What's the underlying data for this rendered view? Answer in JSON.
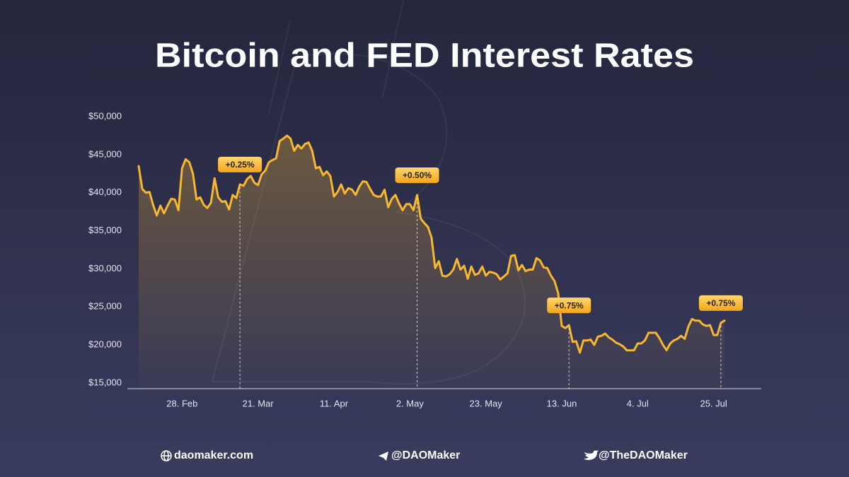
{
  "chart_data": {
    "type": "line",
    "title": "Bitcoin and FED Interest Rates",
    "color": "#f7b731",
    "ylim": [
      15000,
      50000
    ],
    "yticks": [
      {
        "value": 15000,
        "label": "$15,000"
      },
      {
        "value": 20000,
        "label": "$20,000"
      },
      {
        "value": 25000,
        "label": "$25,000"
      },
      {
        "value": 30000,
        "label": "$30,000"
      },
      {
        "value": 35000,
        "label": "$35,000"
      },
      {
        "value": 40000,
        "label": "$40,000"
      },
      {
        "value": 45000,
        "label": "$45,000"
      },
      {
        "value": 50000,
        "label": "$50,000"
      }
    ],
    "grid": false,
    "categories": [
      null,
      null,
      null,
      null,
      null,
      null,
      null,
      null,
      null,
      null,
      null,
      null,
      "28. Feb",
      null,
      null,
      null,
      null,
      null,
      null,
      null,
      null,
      null,
      null,
      null,
      null,
      null,
      null,
      null,
      null,
      null,
      null,
      null,
      null,
      "21. Mar",
      null,
      null,
      null,
      null,
      null,
      null,
      null,
      null,
      null,
      null,
      null,
      null,
      null,
      null,
      null,
      null,
      null,
      null,
      null,
      null,
      "11. Apr",
      null,
      null,
      null,
      null,
      null,
      null,
      null,
      null,
      null,
      null,
      null,
      null,
      null,
      null,
      null,
      null,
      null,
      null,
      null,
      null,
      "2. May",
      null,
      null,
      null,
      null,
      null,
      null,
      null,
      null,
      null,
      null,
      null,
      null,
      null,
      null,
      null,
      null,
      null,
      null,
      null,
      null,
      "23. May",
      null,
      null,
      null,
      null,
      null,
      null,
      null,
      null,
      null,
      null,
      null,
      null,
      null,
      null,
      null,
      null,
      null,
      null,
      null,
      null,
      "13. Jun",
      null,
      null,
      null,
      null,
      null,
      null,
      null,
      null,
      null,
      null,
      null,
      null,
      null,
      null,
      null,
      null,
      null,
      null,
      null,
      null,
      "4. Jul",
      null,
      null,
      null,
      null,
      null,
      null,
      null,
      null,
      null,
      null,
      null,
      null,
      null,
      null,
      null,
      null,
      null,
      null,
      null,
      null,
      "25. Jul",
      null,
      null,
      null
    ],
    "values": [
      43500,
      40500,
      40000,
      40100,
      38400,
      37000,
      38300,
      37300,
      38300,
      39200,
      39100,
      37700,
      43200,
      44400,
      44000,
      42500,
      39100,
      39400,
      38400,
      38000,
      38700,
      41900,
      39400,
      38800,
      38900,
      37800,
      39700,
      39300,
      41100,
      40900,
      41800,
      42200,
      41300,
      41000,
      42400,
      42900,
      44000,
      44300,
      44500,
      46800,
      47100,
      47500,
      47100,
      45500,
      46300,
      45800,
      46400,
      46600,
      45500,
      43200,
      43400,
      42300,
      42800,
      42200,
      39500,
      40100,
      41100,
      39900,
      40600,
      40400,
      39700,
      40800,
      41500,
      41400,
      40500,
      39700,
      39500,
      39500,
      40400,
      38100,
      39200,
      39700,
      38600,
      37700,
      38500,
      38500,
      37700,
      39700,
      36600,
      36000,
      35500,
      34100,
      30100,
      31000,
      29100,
      29000,
      29300,
      29900,
      31300,
      29900,
      30400,
      28700,
      30300,
      29200,
      29400,
      30300,
      29100,
      29600,
      29500,
      29300,
      28600,
      29000,
      29400,
      31700,
      31800,
      29800,
      30500,
      29700,
      29900,
      29900,
      31400,
      31100,
      30200,
      30100,
      29100,
      28400,
      26800,
      22500,
      22200,
      22600,
      20400,
      20500,
      19000,
      20600,
      20600,
      20700,
      20000,
      21100,
      21200,
      21500,
      21000,
      20700,
      20300,
      20100,
      19800,
      19300,
      19300,
      19300,
      20200,
      20200,
      20600,
      21600,
      21600,
      21600,
      20900,
      20000,
      19300,
      20200,
      20600,
      20800,
      21200,
      20800,
      22400,
      23400,
      23200,
      23200,
      22700,
      22500,
      22600,
      21300,
      21300,
      22900,
      23200
    ],
    "rate_hikes": [
      null,
      null,
      null,
      null,
      null,
      null,
      null,
      null,
      null,
      null,
      null,
      null,
      null,
      null,
      null,
      null,
      null,
      null,
      null,
      null,
      null,
      null,
      null,
      null,
      null,
      null,
      null,
      null,
      {
        "value": 0.25,
        "label": "+0.25%"
      },
      null,
      null,
      null,
      null,
      null,
      null,
      null,
      null,
      null,
      null,
      null,
      null,
      null,
      null,
      null,
      null,
      null,
      null,
      null,
      null,
      null,
      null,
      null,
      null,
      null,
      null,
      null,
      null,
      null,
      null,
      null,
      null,
      null,
      null,
      null,
      null,
      null,
      null,
      null,
      null,
      null,
      null,
      null,
      null,
      null,
      null,
      null,
      null,
      {
        "value": 0.5,
        "label": "+0.50%"
      },
      null,
      null,
      null,
      null,
      null,
      null,
      null,
      null,
      null,
      null,
      null,
      null,
      null,
      null,
      null,
      null,
      null,
      null,
      null,
      null,
      null,
      null,
      null,
      null,
      null,
      null,
      null,
      null,
      null,
      null,
      null,
      null,
      null,
      null,
      null,
      null,
      null,
      null,
      null,
      null,
      null,
      {
        "value": 0.75,
        "label": "+0.75%"
      },
      null,
      null,
      null,
      null,
      null,
      null,
      null,
      null,
      null,
      null,
      null,
      null,
      null,
      null,
      null,
      null,
      null,
      null,
      null,
      null,
      null,
      null,
      null,
      null,
      null,
      null,
      null,
      null,
      null,
      null,
      null,
      null,
      null,
      null,
      null,
      null,
      null,
      null,
      null,
      null,
      null,
      {
        "value": 0.75,
        "label": "+0.75%"
      },
      null
    ]
  },
  "footer": [
    "daomaker.com",
    "@DAOMaker",
    "@TheDAOMaker"
  ]
}
